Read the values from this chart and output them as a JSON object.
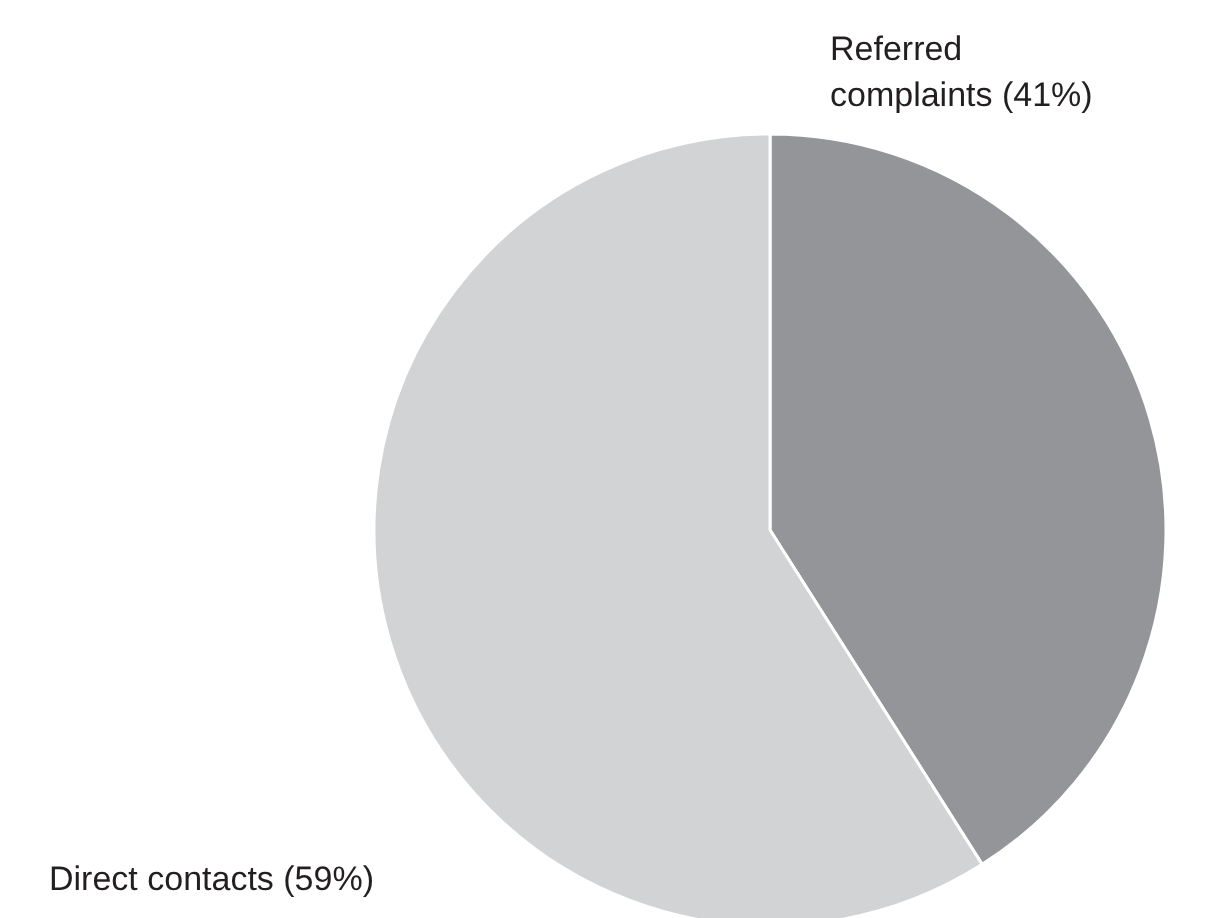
{
  "chart_data": {
    "type": "pie",
    "categories": [
      "Referred complaints (41%)",
      "Direct contacts (59%)"
    ],
    "values": [
      41,
      59
    ],
    "colors": [
      "#939598",
      "#d1d3d4"
    ]
  }
}
